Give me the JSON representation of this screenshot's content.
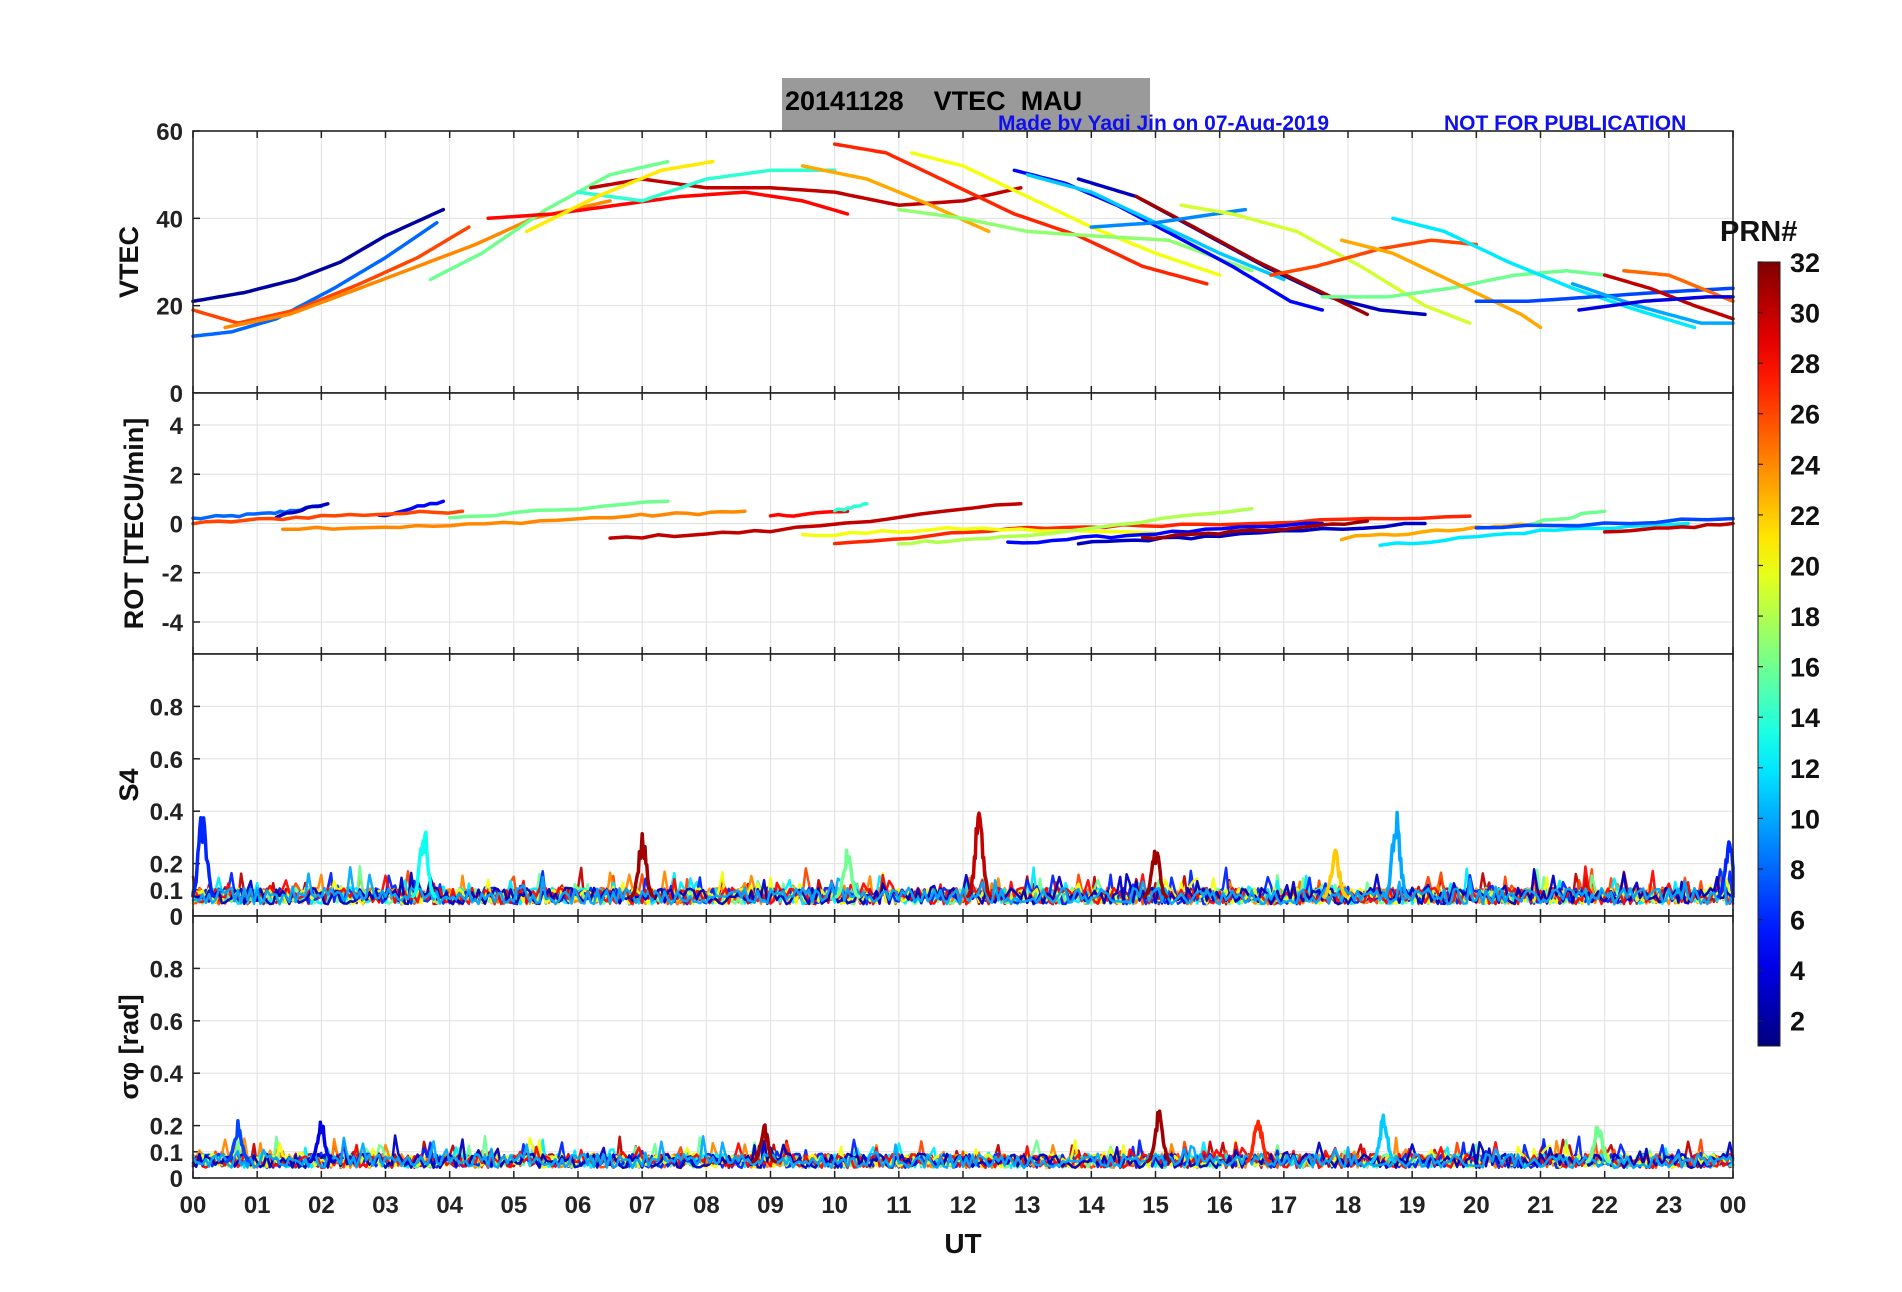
{
  "title": {
    "date": "20141128",
    "quantity": "VTEC",
    "station": "MAU"
  },
  "credit": "Made by Yaqi Jin on 07-Aug-2019",
  "notice": "NOT FOR PUBLICATION",
  "chart_data": {
    "type": "line",
    "xlabel": "UT",
    "x_ticks": [
      "00",
      "01",
      "02",
      "03",
      "04",
      "05",
      "06",
      "07",
      "08",
      "09",
      "10",
      "11",
      "12",
      "13",
      "14",
      "15",
      "16",
      "17",
      "18",
      "19",
      "20",
      "21",
      "22",
      "23",
      "00"
    ],
    "xlim": [
      0,
      24
    ],
    "colorbar": {
      "label": "PRN#",
      "colormap": "jet",
      "range": [
        1,
        32
      ],
      "ticks": [
        "2",
        "4",
        "6",
        "8",
        "10",
        "12",
        "14",
        "16",
        "18",
        "20",
        "22",
        "24",
        "26",
        "28",
        "30",
        "32"
      ]
    },
    "panels": [
      {
        "name": "vtec",
        "ylabel": "VTEC",
        "ylim": [
          0,
          60
        ],
        "y_ticks": [
          "0",
          "20",
          "40",
          "60"
        ],
        "series": [
          {
            "prn": 2,
            "x": [
              0,
              0.8,
              1.6,
              2.3,
              3.0,
              3.9
            ],
            "y": [
              21,
              23,
              26,
              30,
              36,
              42
            ]
          },
          {
            "prn": 8,
            "x": [
              0,
              0.6,
              1.3,
              2.2,
              3.0,
              3.8
            ],
            "y": [
              13,
              14,
              17,
              24,
              31,
              39
            ]
          },
          {
            "prn": 26,
            "x": [
              0,
              0.7,
              1.6,
              2.6,
              3.5,
              4.3
            ],
            "y": [
              19,
              16,
              19,
              25,
              31,
              38
            ]
          },
          {
            "prn": 24,
            "x": [
              0.5,
              1.5,
              2.6,
              3.5,
              4.4,
              5.3,
              6.5
            ],
            "y": [
              15,
              18,
              24,
              29,
              34,
              40,
              44
            ]
          },
          {
            "prn": 16,
            "x": [
              3.7,
              4.5,
              5.5,
              6.5,
              7.4
            ],
            "y": [
              26,
              32,
              42,
              50,
              53
            ]
          },
          {
            "prn": 28,
            "x": [
              4.6,
              5.6,
              6.6,
              7.6,
              8.6,
              9.5,
              10.2
            ],
            "y": [
              40,
              41,
              43,
              45,
              46,
              44,
              41
            ]
          },
          {
            "prn": 30,
            "x": [
              6.2,
              7.0,
              8.0,
              9.0,
              10.0,
              11.0,
              12.0,
              12.9
            ],
            "y": [
              47,
              49,
              47,
              47,
              46,
              43,
              44,
              47
            ]
          },
          {
            "prn": 14,
            "x": [
              6.0,
              7.0,
              8.0,
              9.0,
              10.0
            ],
            "y": [
              46,
              44,
              49,
              51,
              51
            ]
          },
          {
            "prn": 21,
            "x": [
              5.2,
              6.3,
              7.3,
              8.1
            ],
            "y": [
              37,
              45,
              51,
              53
            ]
          },
          {
            "prn": 27,
            "x": [
              10.0,
              10.8,
              11.8,
              12.8,
              13.8,
              14.8,
              15.8
            ],
            "y": [
              57,
              55,
              48,
              41,
              36,
              29,
              25
            ]
          },
          {
            "prn": 20,
            "x": [
              11.2,
              12.0,
              13.0,
              14.0,
              15.0,
              16.0
            ],
            "y": [
              55,
              52,
              45,
              38,
              32,
              27
            ]
          },
          {
            "prn": 23,
            "x": [
              9.5,
              10.5,
              11.5,
              12.4
            ],
            "y": [
              52,
              49,
              43,
              37
            ]
          },
          {
            "prn": 17,
            "x": [
              11.0,
              12.0,
              13.0,
              14.0,
              15.2,
              16.5
            ],
            "y": [
              42,
              40,
              37,
              36,
              35,
              28
            ]
          },
          {
            "prn": 5,
            "x": [
              12.8,
              13.6,
              14.4,
              15.3,
              16.2,
              17.1,
              17.6
            ],
            "y": [
              51,
              48,
              43,
              36,
              29,
              21,
              19
            ]
          },
          {
            "prn": 11,
            "x": [
              13.0,
              14.0,
              15.0,
              16.0,
              17.0
            ],
            "y": [
              50,
              46,
              39,
              32,
              26
            ]
          },
          {
            "prn": 3,
            "x": [
              13.8,
              14.7,
              15.7,
              16.7,
              17.7,
              18.5,
              19.2
            ],
            "y": [
              49,
              45,
              37,
              29,
              22,
              19,
              18
            ]
          },
          {
            "prn": 31,
            "x": [
              14.7,
              15.6,
              16.6,
              17.6,
              18.3
            ],
            "y": [
              45,
              38,
              30,
              23,
              18
            ]
          },
          {
            "prn": 9,
            "x": [
              14.0,
              15.0,
              16.4
            ],
            "y": [
              38,
              39,
              42
            ]
          },
          {
            "prn": 19,
            "x": [
              15.4,
              16.2,
              17.2,
              18.2,
              19.2,
              19.9
            ],
            "y": [
              43,
              41,
              37,
              29,
              20,
              16
            ]
          },
          {
            "prn": 26,
            "x": [
              16.8,
              17.5,
              18.5,
              19.3,
              20.0
            ],
            "y": [
              27,
              29,
              33,
              35,
              34
            ]
          },
          {
            "prn": 16,
            "x": [
              17.6,
              18.6,
              19.6,
              20.6,
              21.4,
              22.0
            ],
            "y": [
              22,
              22,
              24,
              27,
              28,
              27
            ]
          },
          {
            "prn": 12,
            "x": [
              18.7,
              19.5,
              20.5,
              21.5,
              22.5,
              23.4
            ],
            "y": [
              40,
              37,
              30,
              24,
              19,
              15
            ]
          },
          {
            "prn": 23,
            "x": [
              17.9,
              18.7,
              19.7,
              20.7,
              21.0
            ],
            "y": [
              35,
              32,
              25,
              18,
              15
            ]
          },
          {
            "prn": 7,
            "x": [
              20.0,
              20.8,
              21.8,
              22.8,
              24.0
            ],
            "y": [
              21,
              21,
              22,
              23,
              24
            ]
          },
          {
            "prn": 30,
            "x": [
              22.0,
              22.7,
              23.4,
              24.0
            ],
            "y": [
              27,
              24,
              20,
              17
            ]
          },
          {
            "prn": 25,
            "x": [
              22.3,
              23.0,
              24.0
            ],
            "y": [
              28,
              27,
              21
            ]
          },
          {
            "prn": 10,
            "x": [
              21.5,
              22.5,
              23.5,
              24.0
            ],
            "y": [
              25,
              20,
              16,
              16
            ]
          },
          {
            "prn": 4,
            "x": [
              21.6,
              22.6,
              23.6,
              24.0
            ],
            "y": [
              19,
              21,
              22,
              22
            ]
          }
        ]
      },
      {
        "name": "rot",
        "ylabel": "ROT [TECU/min]",
        "ylim": [
          -5.3,
          5.3
        ],
        "y_ticks": [
          "-4",
          "-2",
          "0",
          "2",
          "4"
        ],
        "series": [
          {
            "prn": 8,
            "x": [
              0,
              1.2,
              2.0
            ],
            "y": [
              0.2,
              0.4,
              0.7
            ]
          },
          {
            "prn": 3,
            "x": [
              1.3,
              2.1
            ],
            "y": [
              0.3,
              0.8
            ]
          },
          {
            "prn": 5,
            "x": [
              2.9,
              3.9
            ],
            "y": [
              0.3,
              0.9
            ]
          },
          {
            "prn": 26,
            "x": [
              0,
              2.0,
              4.2
            ],
            "y": [
              0,
              0.3,
              0.5
            ]
          },
          {
            "prn": 24,
            "x": [
              1.4,
              4.0,
              6.8,
              8.6
            ],
            "y": [
              -0.2,
              -0.1,
              0.3,
              0.5
            ]
          },
          {
            "prn": 16,
            "x": [
              4.0,
              7.4
            ],
            "y": [
              0.2,
              0.9
            ]
          },
          {
            "prn": 30,
            "x": [
              6.5,
              9.0,
              12.9
            ],
            "y": [
              -0.6,
              -0.3,
              0.8
            ]
          },
          {
            "prn": 28,
            "x": [
              9.0,
              10.2
            ],
            "y": [
              0.3,
              0.5
            ]
          },
          {
            "prn": 14,
            "x": [
              10.0,
              10.5
            ],
            "y": [
              0.5,
              0.8
            ]
          },
          {
            "prn": 27,
            "x": [
              10.0,
              13.0,
              16.0,
              19.9
            ],
            "y": [
              -0.8,
              -0.2,
              0,
              0.3
            ]
          },
          {
            "prn": 20,
            "x": [
              9.5,
              12.0,
              15.0
            ],
            "y": [
              -0.5,
              -0.2,
              -0.4
            ]
          },
          {
            "prn": 18,
            "x": [
              11.0,
              13.0,
              16.5
            ],
            "y": [
              -0.8,
              -0.5,
              0.6
            ]
          },
          {
            "prn": 5,
            "x": [
              12.7,
              15.0,
              17.6
            ],
            "y": [
              -0.8,
              -0.4,
              0
            ]
          },
          {
            "prn": 3,
            "x": [
              13.8,
              16.0,
              19.2
            ],
            "y": [
              -0.8,
              -0.5,
              0
            ]
          },
          {
            "prn": 31,
            "x": [
              14.8,
              16.5,
              18.3
            ],
            "y": [
              -0.6,
              -0.3,
              0.1
            ]
          },
          {
            "prn": 12,
            "x": [
              18.5,
              21.0,
              23.3
            ],
            "y": [
              -0.9,
              -0.3,
              0
            ]
          },
          {
            "prn": 23,
            "x": [
              17.9,
              20.0,
              21.0
            ],
            "y": [
              -0.6,
              -0.2,
              0
            ]
          },
          {
            "prn": 16,
            "x": [
              20.8,
              22.0
            ],
            "y": [
              0,
              0.5
            ]
          },
          {
            "prn": 30,
            "x": [
              22.0,
              24.0
            ],
            "y": [
              -0.4,
              0
            ]
          },
          {
            "prn": 7,
            "x": [
              20.0,
              24.0
            ],
            "y": [
              -0.2,
              0.2
            ]
          }
        ]
      },
      {
        "name": "s4",
        "ylabel": "S4",
        "ylim": [
          0,
          1
        ],
        "y_ticks": [
          "0",
          "0.1",
          "0.2",
          "0.4",
          "0.6",
          "0.8"
        ],
        "noise_floor": 0.07,
        "peaks": [
          {
            "prn": 6,
            "x": 0.15,
            "y": 0.42
          },
          {
            "prn": 13,
            "x": 3.6,
            "y": 0.35
          },
          {
            "prn": 31,
            "x": 7.0,
            "y": 0.32
          },
          {
            "prn": 16,
            "x": 10.2,
            "y": 0.27
          },
          {
            "prn": 30,
            "x": 12.25,
            "y": 0.41
          },
          {
            "prn": 31,
            "x": 15.0,
            "y": 0.28
          },
          {
            "prn": 22,
            "x": 17.8,
            "y": 0.27
          },
          {
            "prn": 10,
            "x": 18.75,
            "y": 0.41
          },
          {
            "prn": 6,
            "x": 23.95,
            "y": 0.33
          }
        ]
      },
      {
        "name": "sigma_phi",
        "ylabel": "σφ [rad]",
        "ylim": [
          0,
          1
        ],
        "y_ticks": [
          "0",
          "0.1",
          "0.2",
          "0.4",
          "0.6",
          "0.8"
        ],
        "noise_floor": 0.06,
        "peaks": [
          {
            "prn": 7,
            "x": 0.7,
            "y": 0.22
          },
          {
            "prn": 4,
            "x": 2.0,
            "y": 0.22
          },
          {
            "prn": 31,
            "x": 8.9,
            "y": 0.21
          },
          {
            "prn": 27,
            "x": 16.6,
            "y": 0.24
          },
          {
            "prn": 31,
            "x": 15.05,
            "y": 0.27
          },
          {
            "prn": 11,
            "x": 18.55,
            "y": 0.25
          },
          {
            "prn": 16,
            "x": 21.9,
            "y": 0.21
          }
        ]
      }
    ]
  }
}
